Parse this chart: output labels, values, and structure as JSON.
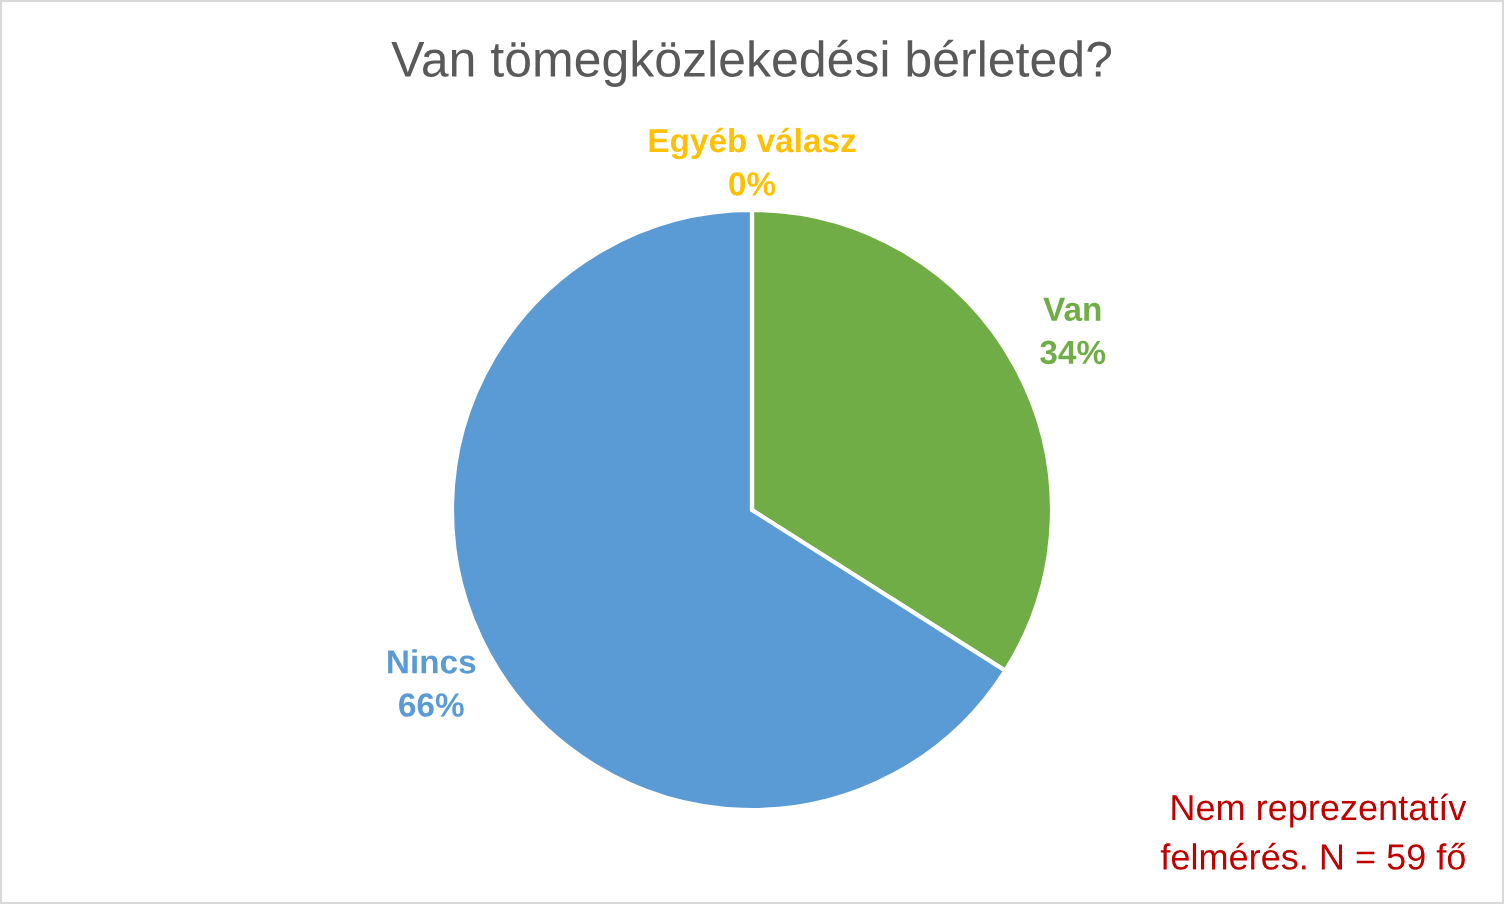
{
  "chart_data": {
    "type": "pie",
    "title": "Van tömegközlekedési bérleted?",
    "categories": [
      "Van",
      "Nincs",
      "Egyéb válasz"
    ],
    "values": [
      34,
      66,
      0
    ],
    "colors": [
      "#70ad47",
      "#5b9bd5",
      "#ffc000"
    ],
    "value_labels": [
      "34%",
      "66%",
      "0%"
    ],
    "legend": false,
    "annotations": [
      "Nem reprezentatív\nfelmérés. N = 59 fő"
    ]
  }
}
